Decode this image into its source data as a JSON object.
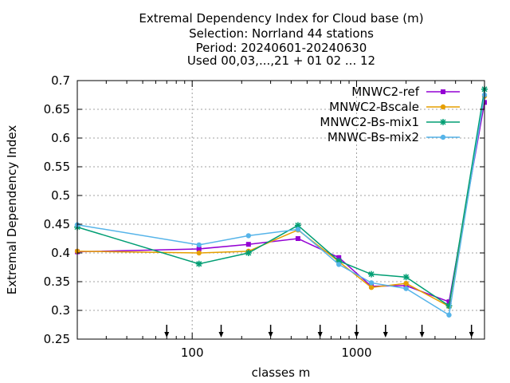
{
  "chart_data": {
    "type": "line",
    "title_lines": [
      "Extremal Dependency Index  for Cloud base (m)",
      "Selection: Norrland     44 stations",
      "Period: 20240601-20240630",
      "Used 00,03,...,21 + 01 02 ... 12"
    ],
    "xlabel": "classes m",
    "ylabel": "Extremal Dependency Index",
    "x_scale": "log",
    "xlim": [
      20,
      6000
    ],
    "ylim": [
      0.25,
      0.7
    ],
    "y_ticks": [
      "0.25",
      "0.3",
      "0.35",
      "0.4",
      "0.45",
      "0.5",
      "0.55",
      "0.6",
      "0.65",
      "0.7"
    ],
    "y_tick_values": [
      0.25,
      0.3,
      0.35,
      0.4,
      0.45,
      0.5,
      0.55,
      0.6,
      0.65,
      0.7
    ],
    "x_ticks": [
      "100",
      "1000"
    ],
    "x_tick_values": [
      100,
      1000
    ],
    "x_minor_ticks": [
      20,
      30,
      40,
      50,
      60,
      70,
      80,
      90,
      200,
      300,
      400,
      500,
      600,
      700,
      800,
      900,
      2000,
      3000,
      4000,
      5000
    ],
    "arrow_markers_x": [
      70,
      150,
      300,
      600,
      1000,
      1500,
      2500,
      5000
    ],
    "grid": true,
    "legend_position": "top-right",
    "series": [
      {
        "name": "MNWC2-ref",
        "color": "#9400d3",
        "marker": "square",
        "x": [
          20,
          110,
          220,
          440,
          780,
          1230,
          2000,
          3650,
          6000
        ],
        "y": [
          0.402,
          0.407,
          0.415,
          0.425,
          0.392,
          0.342,
          0.343,
          0.315,
          0.662
        ]
      },
      {
        "name": "MNWC2-Bscale",
        "color": "#e69f00",
        "marker": "circle",
        "x": [
          20,
          110,
          220,
          440,
          780,
          1230,
          2000,
          3650,
          6000
        ],
        "y": [
          0.403,
          0.4,
          0.403,
          0.44,
          0.385,
          0.34,
          0.347,
          0.307,
          0.673
        ]
      },
      {
        "name": "MNWC2-Bs-mix1",
        "color": "#009e73",
        "marker": "star",
        "x": [
          20,
          110,
          220,
          440,
          780,
          1230,
          2000,
          3650,
          6000
        ],
        "y": [
          0.445,
          0.381,
          0.4,
          0.448,
          0.386,
          0.363,
          0.358,
          0.308,
          0.685
        ]
      },
      {
        "name": "MNWC-Bs-mix2",
        "color": "#56b4e9",
        "marker": "circle",
        "x": [
          20,
          110,
          220,
          440,
          780,
          1230,
          2000,
          3650,
          6000
        ],
        "y": [
          0.449,
          0.414,
          0.43,
          0.441,
          0.38,
          0.348,
          0.338,
          0.292,
          0.675
        ]
      }
    ]
  }
}
